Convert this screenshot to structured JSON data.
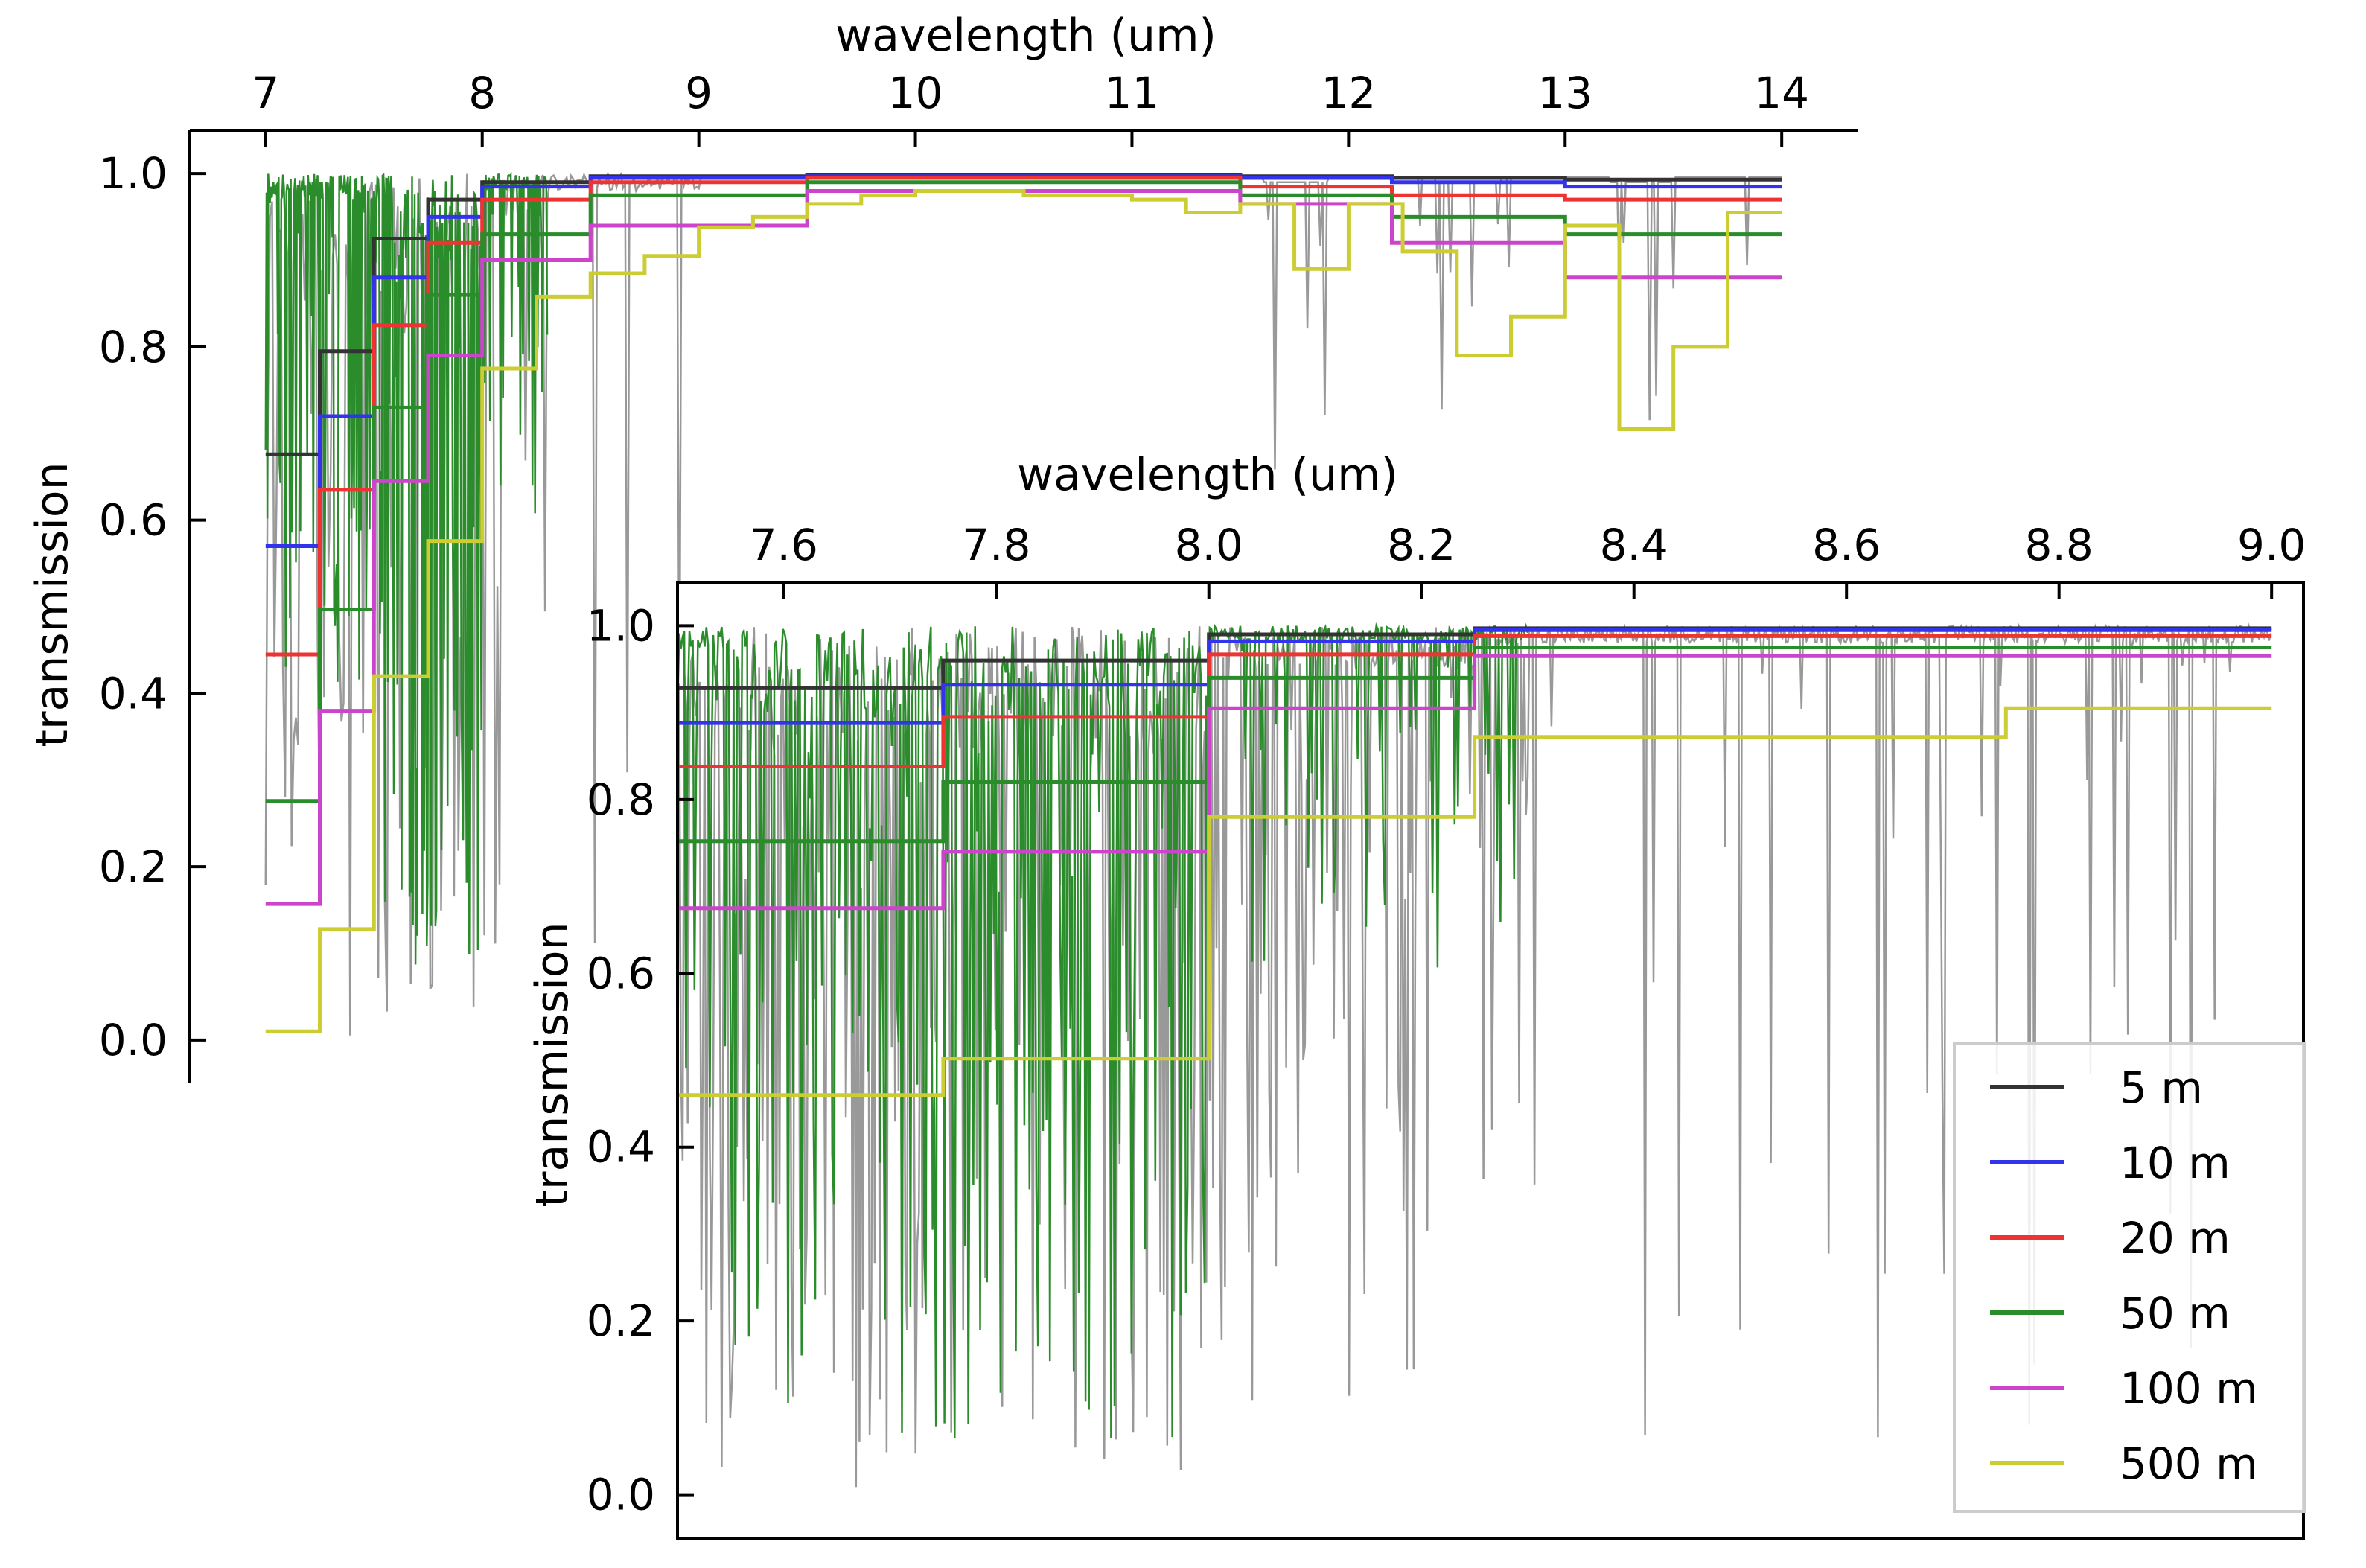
{
  "chart_data": [
    {
      "type": "line",
      "panel": "main",
      "xlabel": "wavelength (um)",
      "ylabel": "transmission",
      "xlim": [
        6.65,
        14.35
      ],
      "ylim": [
        -0.05,
        1.05
      ],
      "xticks": [
        "7",
        "8",
        "9",
        "10",
        "11",
        "12",
        "13",
        "14"
      ],
      "yticks": [
        "0.0",
        "0.2",
        "0.4",
        "0.6",
        "0.8",
        "1.0"
      ],
      "x_axis_position": "top",
      "grid": false,
      "series": [
        {
          "name": "5 m",
          "color": "#333333",
          "step_edges": [
            7.0,
            7.25,
            7.5,
            7.75,
            8.0,
            8.5,
            9.5,
            11.5,
            12.2,
            13.0,
            14.0
          ],
          "values": [
            0.676,
            0.795,
            0.925,
            0.97,
            0.99,
            0.997,
            0.998,
            0.997,
            0.995,
            0.993
          ]
        },
        {
          "name": "10 m",
          "color": "#3333ee",
          "step_edges": [
            7.0,
            7.25,
            7.5,
            7.75,
            8.0,
            8.5,
            9.5,
            11.5,
            12.2,
            13.0,
            14.0
          ],
          "values": [
            0.57,
            0.72,
            0.88,
            0.95,
            0.985,
            0.995,
            0.997,
            0.995,
            0.99,
            0.985
          ]
        },
        {
          "name": "20 m",
          "color": "#ee3333",
          "step_edges": [
            7.0,
            7.25,
            7.5,
            7.75,
            8.0,
            8.5,
            9.5,
            11.5,
            12.2,
            13.0,
            14.0
          ],
          "values": [
            0.445,
            0.635,
            0.825,
            0.92,
            0.97,
            0.99,
            0.995,
            0.985,
            0.975,
            0.97
          ]
        },
        {
          "name": "50 m",
          "color": "#2a8c2a",
          "step_edges": [
            7.0,
            7.25,
            7.5,
            7.75,
            8.0,
            8.5,
            9.5,
            11.5,
            12.2,
            13.0,
            14.0
          ],
          "values": [
            0.276,
            0.497,
            0.73,
            0.86,
            0.93,
            0.975,
            0.99,
            0.975,
            0.95,
            0.93
          ]
        },
        {
          "name": "100 m",
          "color": "#cc44cc",
          "step_edges": [
            7.0,
            7.25,
            7.5,
            7.75,
            8.0,
            8.5,
            9.5,
            11.5,
            12.2,
            13.0,
            14.0
          ],
          "values": [
            0.157,
            0.38,
            0.645,
            0.79,
            0.9,
            0.94,
            0.98,
            0.965,
            0.92,
            0.88
          ]
        },
        {
          "name": "500 m",
          "color": "#cccc33",
          "step_edges": [
            7.0,
            7.25,
            7.5,
            7.75,
            8.0,
            8.25,
            8.5,
            8.75,
            9.0,
            9.25,
            9.5,
            9.75,
            10.0,
            10.5,
            11.0,
            11.25,
            11.5,
            11.75,
            12.0,
            12.25,
            12.5,
            12.75,
            13.0,
            13.25,
            13.5,
            13.75,
            14.0
          ],
          "values": [
            0.01,
            0.128,
            0.42,
            0.576,
            0.775,
            0.858,
            0.885,
            0.905,
            0.938,
            0.95,
            0.965,
            0.975,
            0.98,
            0.975,
            0.97,
            0.955,
            0.965,
            0.89,
            0.965,
            0.91,
            0.79,
            0.835,
            0.94,
            0.705,
            0.8,
            0.955
          ]
        }
      ],
      "background_traces": [
        {
          "name": "spectrum (gray)",
          "color": "#999999"
        },
        {
          "name": "spectrum (green)",
          "color": "#2a8c2a"
        }
      ]
    },
    {
      "type": "line",
      "panel": "inset",
      "xlabel": "wavelength (um)",
      "ylabel": "transmission",
      "xlim": [
        7.5,
        9.03
      ],
      "ylim": [
        -0.05,
        1.05
      ],
      "xticks": [
        "7.6",
        "7.8",
        "8.0",
        "8.2",
        "8.4",
        "8.6",
        "8.8",
        "9.0"
      ],
      "yticks": [
        "0.0",
        "0.2",
        "0.4",
        "0.6",
        "0.8",
        "1.0"
      ],
      "x_axis_position": "top",
      "grid": false,
      "legend_position": "bottom-right",
      "series": [
        {
          "name": "5 m",
          "color": "#333333",
          "step_edges": [
            7.5,
            7.75,
            8.0,
            8.25,
            9.0
          ],
          "values": [
            0.928,
            0.96,
            0.99,
            0.997
          ]
        },
        {
          "name": "10 m",
          "color": "#3333ee",
          "step_edges": [
            7.5,
            7.75,
            8.0,
            8.25,
            9.0
          ],
          "values": [
            0.888,
            0.932,
            0.982,
            0.995
          ]
        },
        {
          "name": "20 m",
          "color": "#ee3333",
          "step_edges": [
            7.5,
            7.75,
            8.0,
            8.25,
            9.0
          ],
          "values": [
            0.838,
            0.895,
            0.967,
            0.988
          ]
        },
        {
          "name": "50 m",
          "color": "#2a8c2a",
          "step_edges": [
            7.5,
            7.75,
            8.0,
            8.25,
            9.0
          ],
          "values": [
            0.752,
            0.82,
            0.94,
            0.975
          ]
        },
        {
          "name": "100 m",
          "color": "#cc44cc",
          "step_edges": [
            7.5,
            7.75,
            8.0,
            8.25,
            9.0
          ],
          "values": [
            0.675,
            0.74,
            0.905,
            0.965
          ]
        },
        {
          "name": "500 m",
          "color": "#cccc33",
          "step_edges": [
            7.5,
            7.75,
            8.0,
            8.25,
            8.75,
            9.0
          ],
          "values": [
            0.46,
            0.502,
            0.78,
            0.872,
            0.905
          ]
        }
      ],
      "background_traces": [
        {
          "name": "spectrum (gray)",
          "color": "#999999"
        },
        {
          "name": "spectrum (green)",
          "color": "#2a8c2a"
        }
      ]
    }
  ]
}
